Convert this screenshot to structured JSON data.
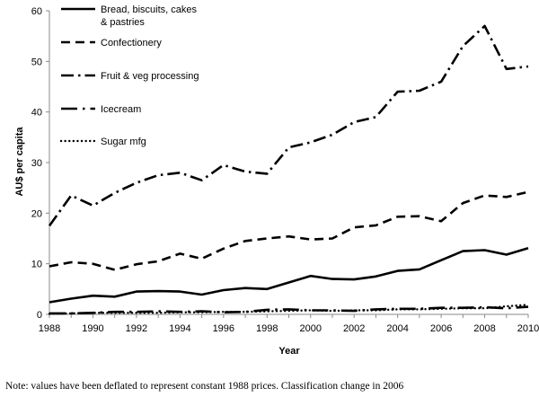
{
  "chart_data": {
    "type": "line",
    "xlabel": "Year",
    "ylabel": "AU$ per capita",
    "xlim": [
      1988,
      2010
    ],
    "ylim": [
      0,
      60
    ],
    "x_ticks": [
      "1988",
      "1990",
      "1992",
      "1994",
      "1996",
      "1998",
      "2000",
      "2002",
      "2004",
      "2006",
      "2008",
      "2010"
    ],
    "y_ticks": [
      "0",
      "10",
      "20",
      "30",
      "40",
      "50",
      "60"
    ],
    "grid": false,
    "legend_position": "top-left",
    "x": [
      1988,
      1989,
      1990,
      1991,
      1992,
      1993,
      1994,
      1995,
      1996,
      1997,
      1998,
      1999,
      2000,
      2001,
      2002,
      2003,
      2004,
      2005,
      2006,
      2007,
      2008,
      2009,
      2010
    ],
    "series": [
      {
        "name_lines": [
          "Bread, biscuits, cakes",
          "& pastries"
        ],
        "style": "solid",
        "values": [
          2.4,
          3.1,
          3.7,
          3.5,
          4.5,
          4.6,
          4.5,
          3.9,
          4.8,
          5.2,
          5.0,
          6.3,
          7.6,
          7.0,
          6.9,
          7.5,
          8.6,
          8.9,
          10.7,
          12.5,
          12.7,
          11.8,
          13.1
        ]
      },
      {
        "name_lines": [
          "Confectionery"
        ],
        "style": "dashed",
        "values": [
          9.5,
          10.3,
          10.0,
          8.8,
          9.9,
          10.5,
          12.0,
          11.0,
          13.0,
          14.5,
          15.0,
          15.4,
          14.8,
          15.0,
          17.2,
          17.6,
          19.3,
          19.4,
          18.4,
          22.0,
          23.5,
          23.2,
          24.2
        ]
      },
      {
        "name_lines": [
          "Fruit & veg processing"
        ],
        "style": "dashdot",
        "values": [
          17.5,
          23.5,
          21.5,
          24.0,
          26.0,
          27.5,
          28.0,
          26.5,
          29.5,
          28.2,
          27.8,
          33.0,
          34.0,
          35.5,
          38.0,
          39.0,
          44.0,
          44.2,
          46.0,
          53.0,
          57.0,
          48.5,
          49.0
        ]
      },
      {
        "name_lines": [
          "Icecream"
        ],
        "style": "longdash",
        "values": [
          0.2,
          0.2,
          0.3,
          0.5,
          0.5,
          0.6,
          0.5,
          0.6,
          0.4,
          0.5,
          0.9,
          1.0,
          0.8,
          0.8,
          0.7,
          1.0,
          1.1,
          1.1,
          1.3,
          1.3,
          1.4,
          1.2,
          1.5
        ]
      },
      {
        "name_lines": [
          "Sugar mfg"
        ],
        "style": "dotted",
        "values": [
          0.1,
          0.2,
          0.3,
          0.3,
          0.3,
          0.3,
          0.4,
          0.4,
          0.5,
          0.5,
          0.6,
          0.7,
          0.8,
          0.7,
          0.8,
          0.8,
          1.0,
          1.0,
          1.1,
          1.2,
          1.2,
          1.6,
          1.9
        ]
      }
    ]
  },
  "note": "Note: values have been deflated to represent constant 1988 prices.  Classification change in 2006"
}
